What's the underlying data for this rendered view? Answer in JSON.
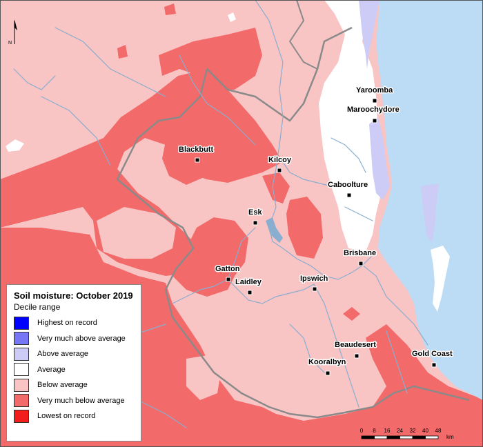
{
  "legend": {
    "title": "Soil moisture: October 2019",
    "subtitle": "Decile range",
    "items": [
      {
        "label": "Highest on record",
        "color": "#0000ff"
      },
      {
        "label": "Very much above average",
        "color": "#7777f5"
      },
      {
        "label": "Above average",
        "color": "#ccccf7"
      },
      {
        "label": "Average",
        "color": "#ffffff"
      },
      {
        "label": "Below average",
        "color": "#f8c4c4"
      },
      {
        "label": "Very much below average",
        "color": "#f26a6a"
      },
      {
        "label": "Lowest on record",
        "color": "#f21c1c"
      }
    ]
  },
  "towns": [
    {
      "name": "Yaroomba"
    },
    {
      "name": "Maroochydore"
    },
    {
      "name": "Blackbutt"
    },
    {
      "name": "Kilcoy"
    },
    {
      "name": "Caboolture"
    },
    {
      "name": "Esk"
    },
    {
      "name": "Brisbane"
    },
    {
      "name": "Gatton"
    },
    {
      "name": "Laidley"
    },
    {
      "name": "Ipswich"
    },
    {
      "name": "Beaudesert"
    },
    {
      "name": "Gold Coast"
    },
    {
      "name": "Kooralbyn"
    }
  ],
  "scalebar": {
    "ticks": [
      "0",
      "8",
      "16",
      "24",
      "32",
      "40",
      "48"
    ],
    "unit": "km"
  },
  "north_arrow": {
    "label": "N"
  },
  "colors": {
    "ocean": "#bcdcf5",
    "river": "#8aaed0",
    "boundary": "#a8a8a8"
  }
}
